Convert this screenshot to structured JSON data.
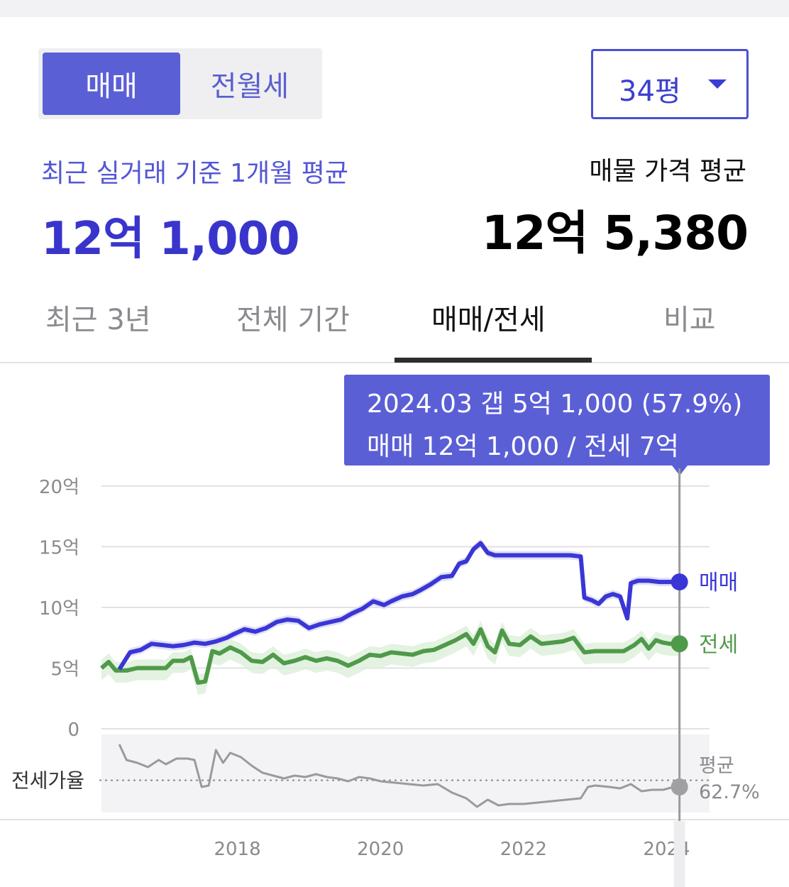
{
  "segment": {
    "options": [
      "매매",
      "전월세"
    ],
    "selected": "매매"
  },
  "size_select": {
    "value": "34평"
  },
  "summary": {
    "recent_label": "최근 실거래 기준 1개월 평균",
    "recent_value": "12억 1,000",
    "listing_label": "매물 가격 평균",
    "listing_value": "12억 5,380"
  },
  "tabs": [
    "최근 3년",
    "전체 기간",
    "매매/전세",
    "비교"
  ],
  "active_tab": "매매/전세",
  "tooltip": {
    "line1": "2024.03  갭 5억 1,000 (57.9%)",
    "line2": "매매 12억 1,000 / 전세 7억"
  },
  "colors": {
    "sale": "#3a36d6",
    "jeonse": "#4f9a4a",
    "ratio": "#9a9a9a",
    "accent": "#5b5fd6"
  },
  "chart_data": {
    "type": "line",
    "ylabel": "",
    "y_ticks": [
      "20억",
      "15억",
      "10억",
      "5억",
      "0"
    ],
    "y_tick_values": [
      20,
      15,
      10,
      5,
      0
    ],
    "ylim": [
      0,
      20
    ],
    "x_ticks": [
      "2018",
      "2020",
      "2022",
      "2024"
    ],
    "x_tick_values": [
      2018,
      2020,
      2022,
      2024
    ],
    "xlim": [
      2016.1,
      2024.6
    ],
    "grid": true,
    "series": [
      {
        "name": "매매",
        "color": "#3a36d6",
        "x": [
          2016.35,
          2016.5,
          2016.65,
          2016.8,
          2016.95,
          2017.1,
          2017.25,
          2017.4,
          2017.55,
          2017.7,
          2017.85,
          2017.95,
          2018.1,
          2018.25,
          2018.4,
          2018.55,
          2018.7,
          2018.85,
          2019.0,
          2019.15,
          2019.3,
          2019.45,
          2019.6,
          2019.75,
          2019.9,
          2020.05,
          2020.15,
          2020.3,
          2020.45,
          2020.55,
          2020.7,
          2020.85,
          2021.0,
          2021.1,
          2021.2,
          2021.3,
          2021.4,
          2021.5,
          2021.6,
          2021.75,
          2021.9,
          2022.1,
          2022.3,
          2022.5,
          2022.65,
          2022.8,
          2022.85,
          2022.95,
          2023.05,
          2023.15,
          2023.25,
          2023.35,
          2023.45,
          2023.5,
          2023.6,
          2023.75,
          2023.9,
          2024.0,
          2024.1,
          2024.18
        ],
        "y": [
          4.9,
          6.3,
          6.5,
          7.0,
          6.9,
          6.8,
          6.9,
          7.1,
          7.0,
          7.2,
          7.5,
          7.8,
          8.2,
          8.0,
          8.3,
          8.8,
          9.0,
          8.9,
          8.3,
          8.6,
          8.8,
          9.0,
          9.5,
          9.9,
          10.5,
          10.2,
          10.5,
          10.9,
          11.1,
          11.4,
          11.9,
          12.5,
          12.6,
          13.6,
          13.8,
          14.8,
          15.3,
          14.5,
          14.3,
          14.3,
          14.3,
          14.3,
          14.3,
          14.3,
          14.3,
          14.2,
          10.8,
          10.6,
          10.3,
          10.9,
          11.1,
          10.9,
          9.1,
          12.0,
          12.2,
          12.2,
          12.1,
          12.1,
          12.1,
          12.1
        ]
      },
      {
        "name": "전세",
        "color": "#4f9a4a",
        "x": [
          2016.1,
          2016.2,
          2016.3,
          2016.45,
          2016.6,
          2016.75,
          2016.9,
          2017.0,
          2017.1,
          2017.25,
          2017.35,
          2017.45,
          2017.55,
          2017.65,
          2017.75,
          2017.9,
          2018.05,
          2018.2,
          2018.35,
          2018.5,
          2018.65,
          2018.8,
          2018.95,
          2019.1,
          2019.25,
          2019.4,
          2019.55,
          2019.7,
          2019.85,
          2020.0,
          2020.15,
          2020.3,
          2020.45,
          2020.6,
          2020.75,
          2020.9,
          2021.05,
          2021.2,
          2021.3,
          2021.4,
          2021.5,
          2021.6,
          2021.7,
          2021.8,
          2021.95,
          2022.1,
          2022.25,
          2022.4,
          2022.55,
          2022.7,
          2022.85,
          2023.0,
          2023.2,
          2023.4,
          2023.55,
          2023.65,
          2023.75,
          2023.85,
          2023.95,
          2024.05,
          2024.18
        ],
        "y": [
          5.0,
          5.5,
          4.8,
          4.8,
          5.0,
          5.0,
          5.0,
          5.0,
          5.6,
          5.6,
          5.9,
          3.8,
          3.9,
          6.4,
          6.2,
          6.7,
          6.3,
          5.6,
          5.5,
          6.1,
          5.4,
          5.6,
          5.9,
          5.6,
          5.8,
          5.6,
          5.2,
          5.6,
          6.1,
          6.0,
          6.3,
          6.2,
          6.1,
          6.4,
          6.5,
          6.9,
          7.3,
          7.8,
          7.0,
          8.2,
          6.8,
          6.3,
          8.1,
          7.0,
          6.9,
          7.6,
          7.0,
          7.1,
          7.2,
          7.5,
          6.3,
          6.4,
          6.4,
          6.4,
          6.9,
          7.4,
          6.6,
          7.3,
          7.1,
          7.0,
          7.0
        ]
      },
      {
        "name": "전세가율",
        "color": "#9a9a9a",
        "x": [
          2016.35,
          2016.45,
          2016.6,
          2016.75,
          2016.9,
          2017.0,
          2017.15,
          2017.3,
          2017.4,
          2017.5,
          2017.6,
          2017.7,
          2017.8,
          2017.9,
          2018.05,
          2018.2,
          2018.35,
          2018.5,
          2018.65,
          2018.8,
          2018.95,
          2019.1,
          2019.25,
          2019.4,
          2019.55,
          2019.7,
          2019.85,
          2020.0,
          2020.2,
          2020.4,
          2020.6,
          2020.8,
          2021.0,
          2021.2,
          2021.35,
          2021.5,
          2021.65,
          2021.8,
          2022.0,
          2022.2,
          2022.4,
          2022.6,
          2022.8,
          2022.9,
          2023.0,
          2023.2,
          2023.35,
          2023.5,
          2023.65,
          2023.8,
          2023.95,
          2024.1,
          2024.18
        ],
        "y": [
          88,
          77,
          75,
          72,
          77,
          74,
          78,
          78,
          77,
          58,
          59,
          84,
          75,
          82,
          79,
          73,
          68,
          66,
          64,
          66,
          65,
          67,
          65,
          64,
          62,
          65,
          64,
          62,
          61,
          60,
          59,
          60,
          54,
          50,
          44,
          49,
          45,
          46,
          46,
          47,
          48,
          49,
          50,
          58,
          59,
          58,
          57,
          60,
          55,
          56,
          56,
          58,
          58
        ]
      }
    ],
    "series_labels": {
      "sale": "매매",
      "jeonse": "전세"
    },
    "ratio_panel": {
      "label": "전세가율",
      "avg_label": "평균",
      "avg_value": "62.7%",
      "avg": 62.7,
      "ylim": [
        40,
        95
      ]
    },
    "highlight_x": 2024.18
  }
}
